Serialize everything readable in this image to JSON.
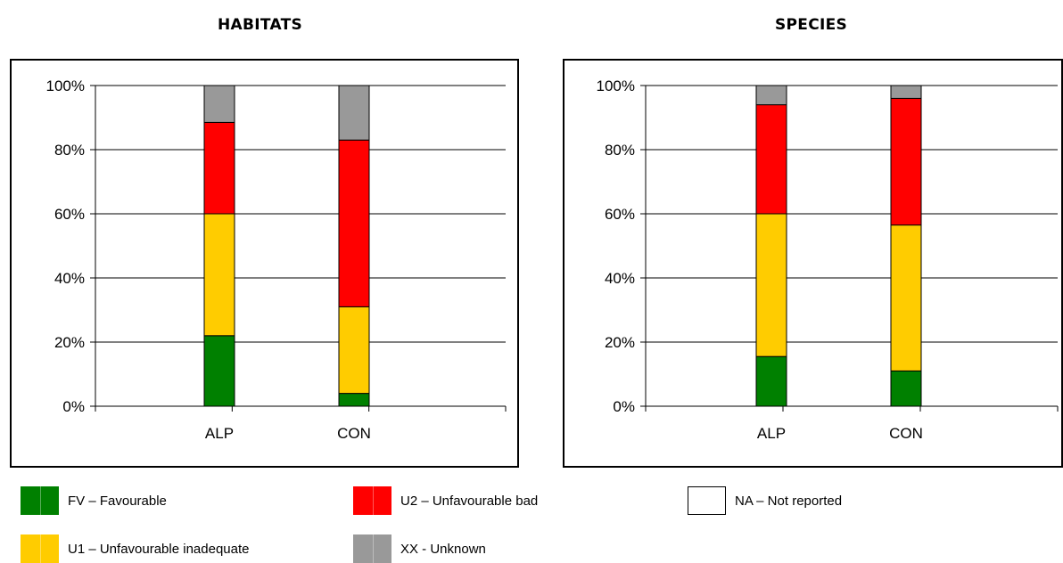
{
  "colors": {
    "FV": "#008000",
    "U1": "#ffcc00",
    "U2": "#ff0000",
    "XX": "#999999",
    "NA": "#ffffff"
  },
  "chart_data": [
    {
      "type": "bar",
      "stacked": true,
      "title": "HABITATS",
      "categories": [
        "ALP",
        "CON"
      ],
      "y_ticks": [
        "0%",
        "20%",
        "40%",
        "60%",
        "80%",
        "100%"
      ],
      "ylim": [
        0,
        100
      ],
      "grid": true,
      "series": [
        {
          "key": "FV",
          "values": [
            22,
            4
          ]
        },
        {
          "key": "U1",
          "values": [
            38,
            27
          ]
        },
        {
          "key": "U2",
          "values": [
            28.5,
            52
          ]
        },
        {
          "key": "XX",
          "values": [
            11.5,
            17
          ]
        }
      ]
    },
    {
      "type": "bar",
      "stacked": true,
      "title": "SPECIES",
      "categories": [
        "ALP",
        "CON"
      ],
      "y_ticks": [
        "0%",
        "20%",
        "40%",
        "60%",
        "80%",
        "100%"
      ],
      "ylim": [
        0,
        100
      ],
      "grid": true,
      "series": [
        {
          "key": "FV",
          "values": [
            15.5,
            11
          ]
        },
        {
          "key": "U1",
          "values": [
            44.5,
            45.5
          ]
        },
        {
          "key": "U2",
          "values": [
            34,
            39.5
          ]
        },
        {
          "key": "XX",
          "values": [
            6,
            4
          ]
        }
      ]
    }
  ],
  "legend": [
    {
      "key": "FV",
      "label": "FV – Favourable"
    },
    {
      "key": "U2",
      "label": "U2 – Unfavourable bad"
    },
    {
      "key": "NA",
      "label": "NA – Not reported"
    },
    {
      "key": "U1",
      "label": "U1 – Unfavourable inadequate"
    },
    {
      "key": "XX",
      "label": "XX - Unknown"
    }
  ]
}
